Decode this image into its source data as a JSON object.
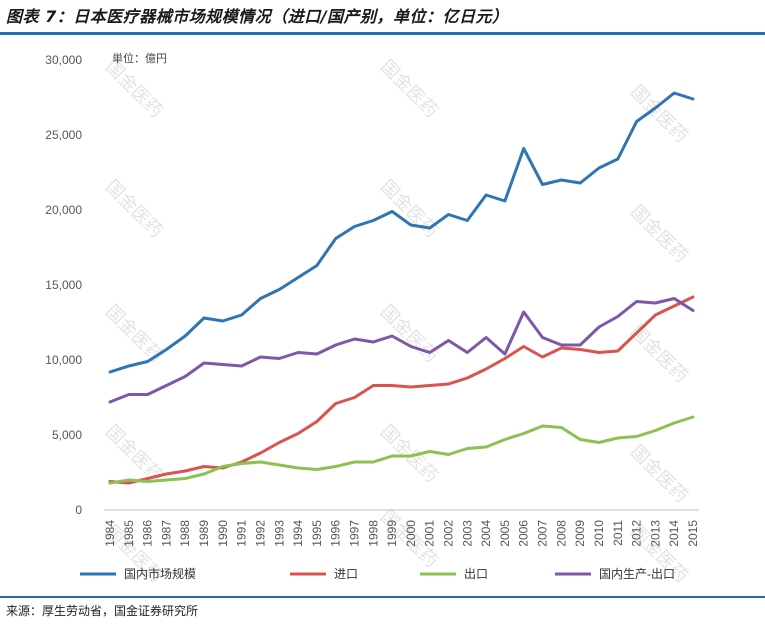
{
  "figure": {
    "title": "图表 7：日本医疗器械市场规模情况（进口/国产别，单位：亿日元）",
    "source": "来源：厚生劳动省，国金证券研究所",
    "watermark": "国金医药"
  },
  "chart_data": {
    "type": "line",
    "unit_label": "単位：億円",
    "x": [
      "1984",
      "1985",
      "1986",
      "1987",
      "1988",
      "1989",
      "1990",
      "1991",
      "1992",
      "1993",
      "1994",
      "1995",
      "1996",
      "1997",
      "1998",
      "1999",
      "2000",
      "2001",
      "2002",
      "2003",
      "2004",
      "2005",
      "2006",
      "2007",
      "2008",
      "2009",
      "2010",
      "2011",
      "2012",
      "2013",
      "2014",
      "2015"
    ],
    "ylim": [
      0,
      30000
    ],
    "yticks": [
      0,
      5000,
      10000,
      15000,
      20000,
      25000,
      30000
    ],
    "ytick_labels": [
      "0",
      "5,000",
      "10,000",
      "15,000",
      "20,000",
      "25,000",
      "30,000"
    ],
    "grid": false,
    "legend_position": "bottom",
    "series": [
      {
        "name": "国内市场规模",
        "color": "#2e75b6",
        "values": [
          9200,
          9600,
          9900,
          10700,
          11600,
          12800,
          12600,
          13000,
          14100,
          14700,
          15500,
          16300,
          18100,
          18900,
          19300,
          19900,
          19000,
          18800,
          19700,
          19300,
          21000,
          20600,
          24100,
          21700,
          22000,
          21800,
          22800,
          23400,
          25900,
          26800,
          27800,
          27400
        ]
      },
      {
        "name": "进口",
        "color": "#d9534f",
        "values": [
          1900,
          1800,
          2100,
          2400,
          2600,
          2900,
          2800,
          3200,
          3800,
          4500,
          5100,
          5900,
          7100,
          7500,
          8300,
          8300,
          8200,
          8300,
          8400,
          8800,
          9400,
          10100,
          10900,
          10200,
          10800,
          10700,
          10500,
          10600,
          11800,
          13000,
          13600,
          14200
        ]
      },
      {
        "name": "出口",
        "color": "#8cc152",
        "values": [
          1800,
          2000,
          1900,
          2000,
          2100,
          2400,
          2900,
          3100,
          3200,
          3000,
          2800,
          2700,
          2900,
          3200,
          3200,
          3600,
          3600,
          3900,
          3700,
          4100,
          4200,
          4700,
          5100,
          5600,
          5500,
          4700,
          4500,
          4800,
          4900,
          5300,
          5800,
          6200
        ]
      },
      {
        "name": "国内生产-出口",
        "color": "#7e57a8",
        "values": [
          7200,
          7700,
          7700,
          8300,
          8900,
          9800,
          9700,
          9600,
          10200,
          10100,
          10500,
          10400,
          11000,
          11400,
          11200,
          11600,
          10900,
          10500,
          11300,
          10500,
          11500,
          10400,
          13200,
          11500,
          11000,
          11000,
          12200,
          12900,
          13900,
          13800,
          14100,
          13300
        ]
      }
    ]
  }
}
